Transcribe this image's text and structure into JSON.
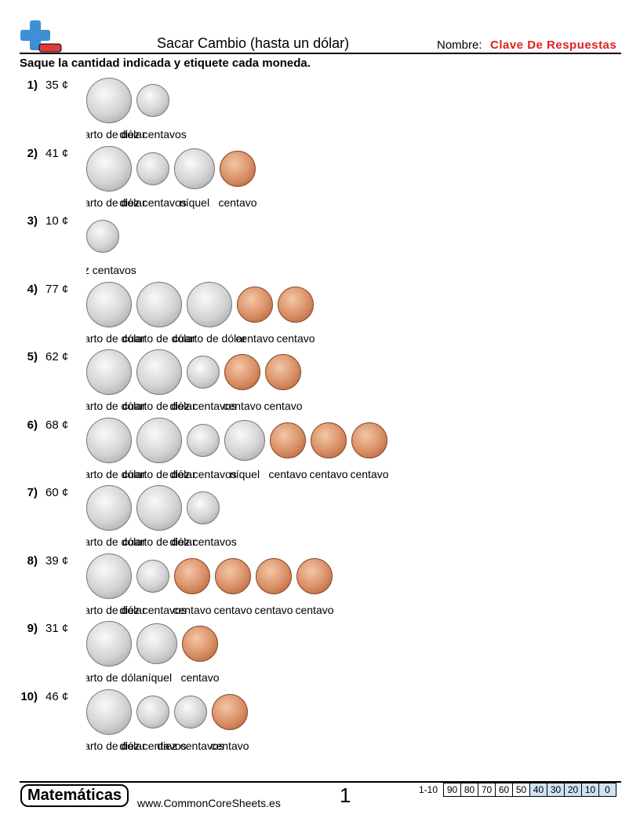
{
  "header": {
    "title": "Sacar Cambio (hasta un dólar)",
    "name_label": "Nombre:",
    "name_value": "Clave De Respuestas"
  },
  "instructions": "Saque la cantidad indicada y etiquete cada moneda.",
  "problems": [
    {
      "number": "1)",
      "amount": "35 ¢",
      "coins": [
        "cuarto de dólar",
        "diez centavos"
      ]
    },
    {
      "number": "2)",
      "amount": "41 ¢",
      "coins": [
        "cuarto de dólar",
        "diez centavos",
        "níquel",
        "centavo"
      ]
    },
    {
      "number": "3)",
      "amount": "10 ¢",
      "coins": [
        "diez centavos"
      ]
    },
    {
      "number": "4)",
      "amount": "77 ¢",
      "coins": [
        "cuarto de dólar",
        "cuarto de dólar",
        "cuarto de dólar",
        "centavo",
        "centavo"
      ]
    },
    {
      "number": "5)",
      "amount": "62 ¢",
      "coins": [
        "cuarto de dólar",
        "cuarto de dólar",
        "diez centavos",
        "centavo",
        "centavo"
      ]
    },
    {
      "number": "6)",
      "amount": "68 ¢",
      "coins": [
        "cuarto de dólar",
        "cuarto de dólar",
        "diez centavos",
        "níquel",
        "centavo",
        "centavo",
        "centavo"
      ]
    },
    {
      "number": "7)",
      "amount": "60 ¢",
      "coins": [
        "cuarto de dólar",
        "cuarto de dólar",
        "diez centavos"
      ]
    },
    {
      "number": "8)",
      "amount": "39 ¢",
      "coins": [
        "cuarto de dólar",
        "diez centavos",
        "centavo",
        "centavo",
        "centavo",
        "centavo"
      ]
    },
    {
      "number": "9)",
      "amount": "31 ¢",
      "coins": [
        "cuarto de dólar",
        "níquel",
        "centavo"
      ]
    },
    {
      "number": "10)",
      "amount": "46 ¢",
      "coins": [
        "cuarto de dólar",
        "diez centavos",
        "diez centavos",
        "centavo"
      ]
    }
  ],
  "footer": {
    "brand": "Matemáticas",
    "url": "www.CommonCoreSheets.es",
    "page": "1",
    "score_range": "1-10",
    "scores": [
      90,
      80,
      70,
      60,
      50,
      40,
      30,
      20,
      10,
      0
    ]
  }
}
